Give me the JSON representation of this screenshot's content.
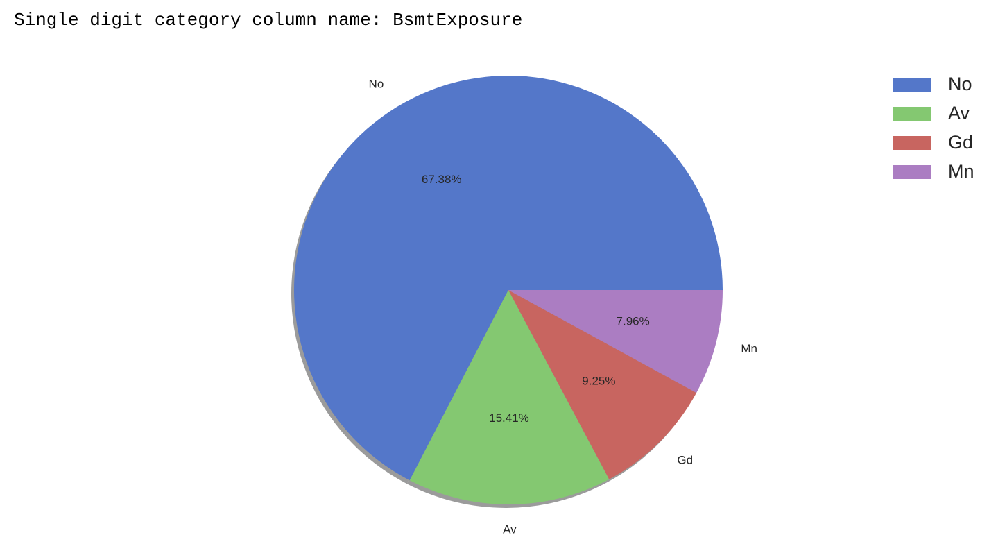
{
  "output": {
    "text": "Single digit category column name: BsmtExposure"
  },
  "chart_data": {
    "type": "pie",
    "categories": [
      "No",
      "Av",
      "Gd",
      "Mn"
    ],
    "values": [
      67.38,
      15.41,
      9.25,
      7.96
    ],
    "value_labels": [
      "67.38%",
      "15.41%",
      "9.25%",
      "7.96%"
    ],
    "colors": [
      "#5477c9",
      "#84c871",
      "#c86560",
      "#ab7dc2"
    ],
    "start_angle_deg": 0,
    "direction": "counterclockwise",
    "shadow": true,
    "legend": {
      "placement": "top-right",
      "entries": [
        "No",
        "Av",
        "Gd",
        "Mn"
      ]
    }
  }
}
